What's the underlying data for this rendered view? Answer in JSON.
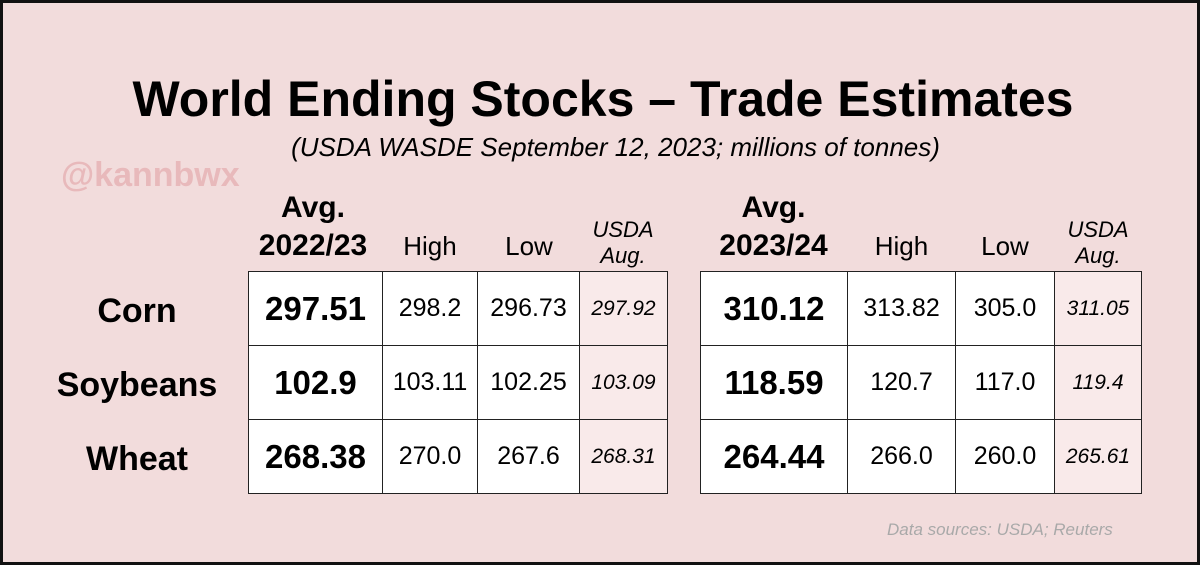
{
  "title": "World Ending Stocks – Trade Estimates",
  "subtitle": "(USDA WASDE September 12, 2023; millions of tonnes)",
  "watermark": "@kannbwx",
  "source": "Data sources: USDA; Reuters",
  "chart_data": {
    "type": "table",
    "title": "World Ending Stocks – Trade Estimates",
    "subtitle": "(USDA WASDE September 12, 2023; millions of tonnes)",
    "rows": [
      "Corn",
      "Soybeans",
      "Wheat"
    ],
    "tables": [
      {
        "headers": {
          "avg_line1": "Avg.",
          "avg_line2": "2022/23",
          "high": "High",
          "low": "Low",
          "usda_line1": "USDA",
          "usda_line2": "Aug."
        },
        "values": [
          {
            "avg": "297.51",
            "high": "298.2",
            "low": "296.73",
            "usda": "297.92"
          },
          {
            "avg": "102.9",
            "high": "103.11",
            "low": "102.25",
            "usda": "103.09"
          },
          {
            "avg": "268.38",
            "high": "270.0",
            "low": "267.6",
            "usda": "268.31"
          }
        ]
      },
      {
        "headers": {
          "avg_line1": "Avg.",
          "avg_line2": "2023/24",
          "high": "High",
          "low": "Low",
          "usda_line1": "USDA",
          "usda_line2": "Aug."
        },
        "values": [
          {
            "avg": "310.12",
            "high": "313.82",
            "low": "305.0",
            "usda": "311.05"
          },
          {
            "avg": "118.59",
            "high": "120.7",
            "low": "117.0",
            "usda": "119.4"
          },
          {
            "avg": "264.44",
            "high": "266.0",
            "low": "260.0",
            "usda": "265.61"
          }
        ]
      }
    ]
  }
}
